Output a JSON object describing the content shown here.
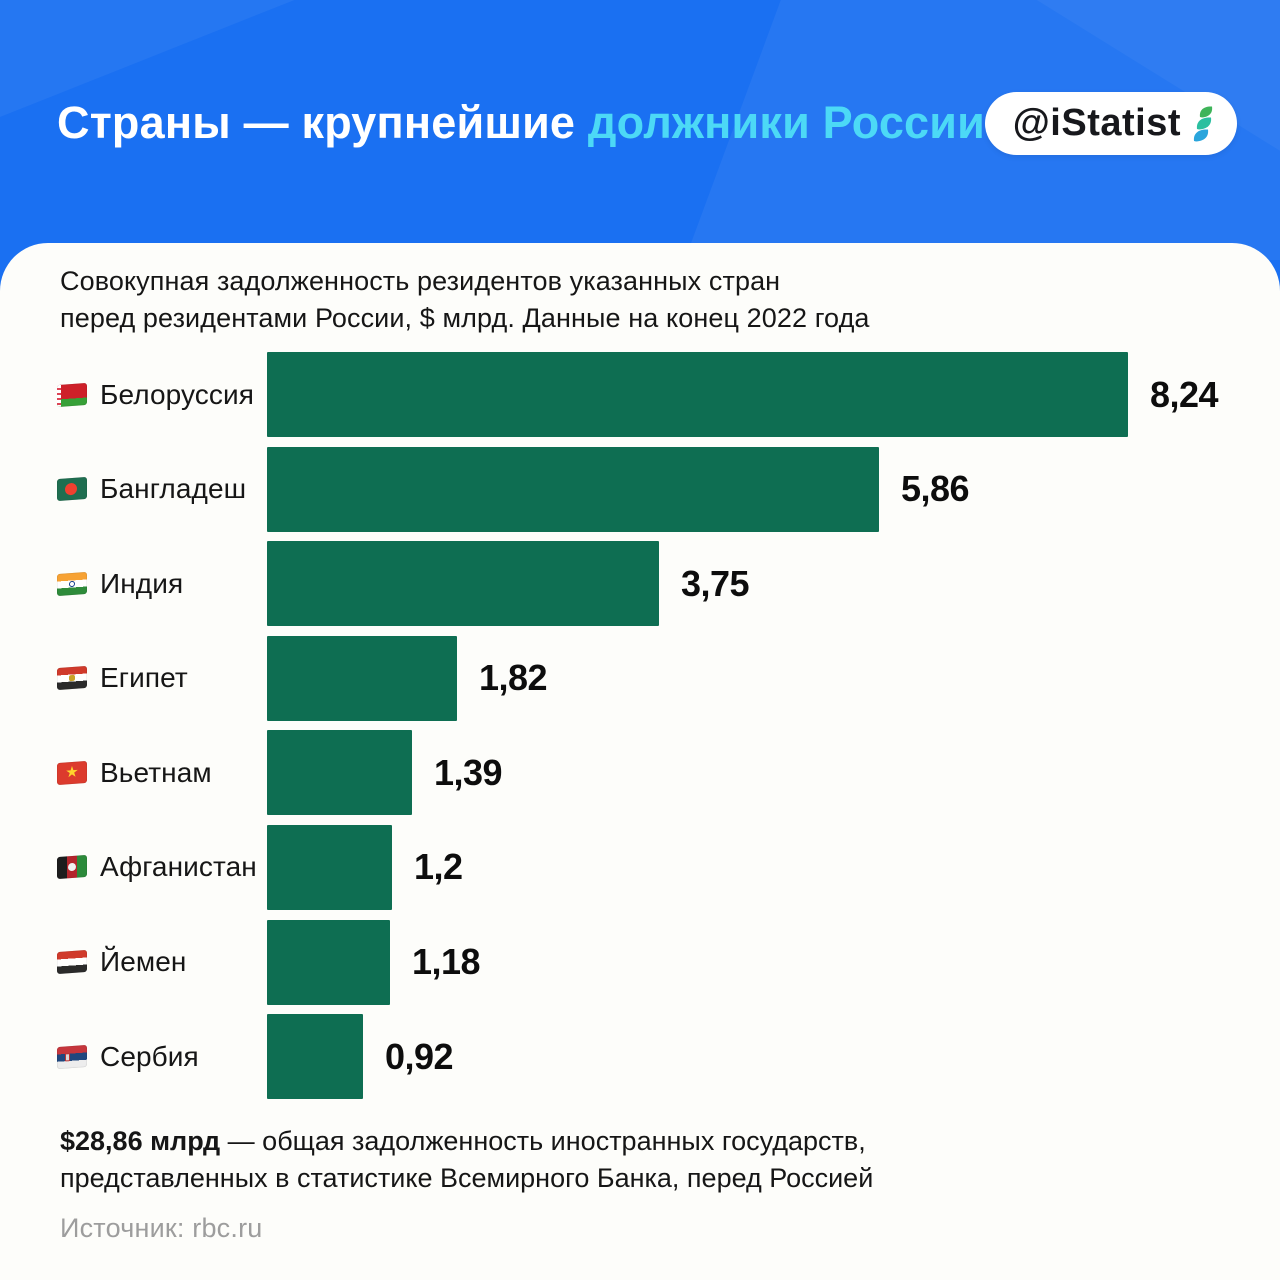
{
  "header": {
    "title_white": "Страны — крупнейшие",
    "title_accent": "должники России",
    "badge": {
      "handle": "@iStatist",
      "logo_icon": "istatist-leaves-logo"
    }
  },
  "card": {
    "subtitle_line1": "Совокупная задолженность резидентов указанных стран",
    "subtitle_line2": "перед резидентами России, $ млрд. Данные на конец 2022 года",
    "footnote": {
      "bold": "$28,86 млрд",
      "line1_rest": " — общая задолженность иностранных государств,",
      "line2": "представленных в статистике Всемирного Банка, перед Россией"
    },
    "source_label": "Источник: rbc.ru"
  },
  "chart_data": {
    "type": "bar",
    "orientation": "horizontal",
    "title": "Совокупная задолженность резидентов указанных стран перед резидентами России, $ млрд. Данные на конец 2022 года",
    "unit": "$ млрд",
    "categories": [
      "Белоруссия",
      "Бангладеш",
      "Индия",
      "Египет",
      "Вьетнам",
      "Афганистан",
      "Йемен",
      "Сербия"
    ],
    "values": [
      8.24,
      5.86,
      3.75,
      1.82,
      1.39,
      1.2,
      1.18,
      0.92
    ],
    "value_labels": [
      "8,24",
      "5,86",
      "3,75",
      "1,82",
      "1,39",
      "1,2",
      "1,18",
      "0,92"
    ],
    "flags": [
      "belarus-flag",
      "bangladesh-flag",
      "india-flag",
      "egypt-flag",
      "vietnam-flag",
      "afghanistan-flag",
      "yemen-flag",
      "serbia-flag"
    ],
    "xlim": [
      0,
      8.24
    ],
    "grid": false,
    "legend": "none",
    "bar_color": "#0e6e52",
    "total_note_value": "28,86"
  },
  "colors": {
    "header_blue": "#1a70f2",
    "accent_cyan": "#4cd9f6",
    "bar_green": "#0e6e52",
    "card_white": "#fdfdfa",
    "text_dark": "#161616",
    "source_gray": "#9d9d9d"
  }
}
